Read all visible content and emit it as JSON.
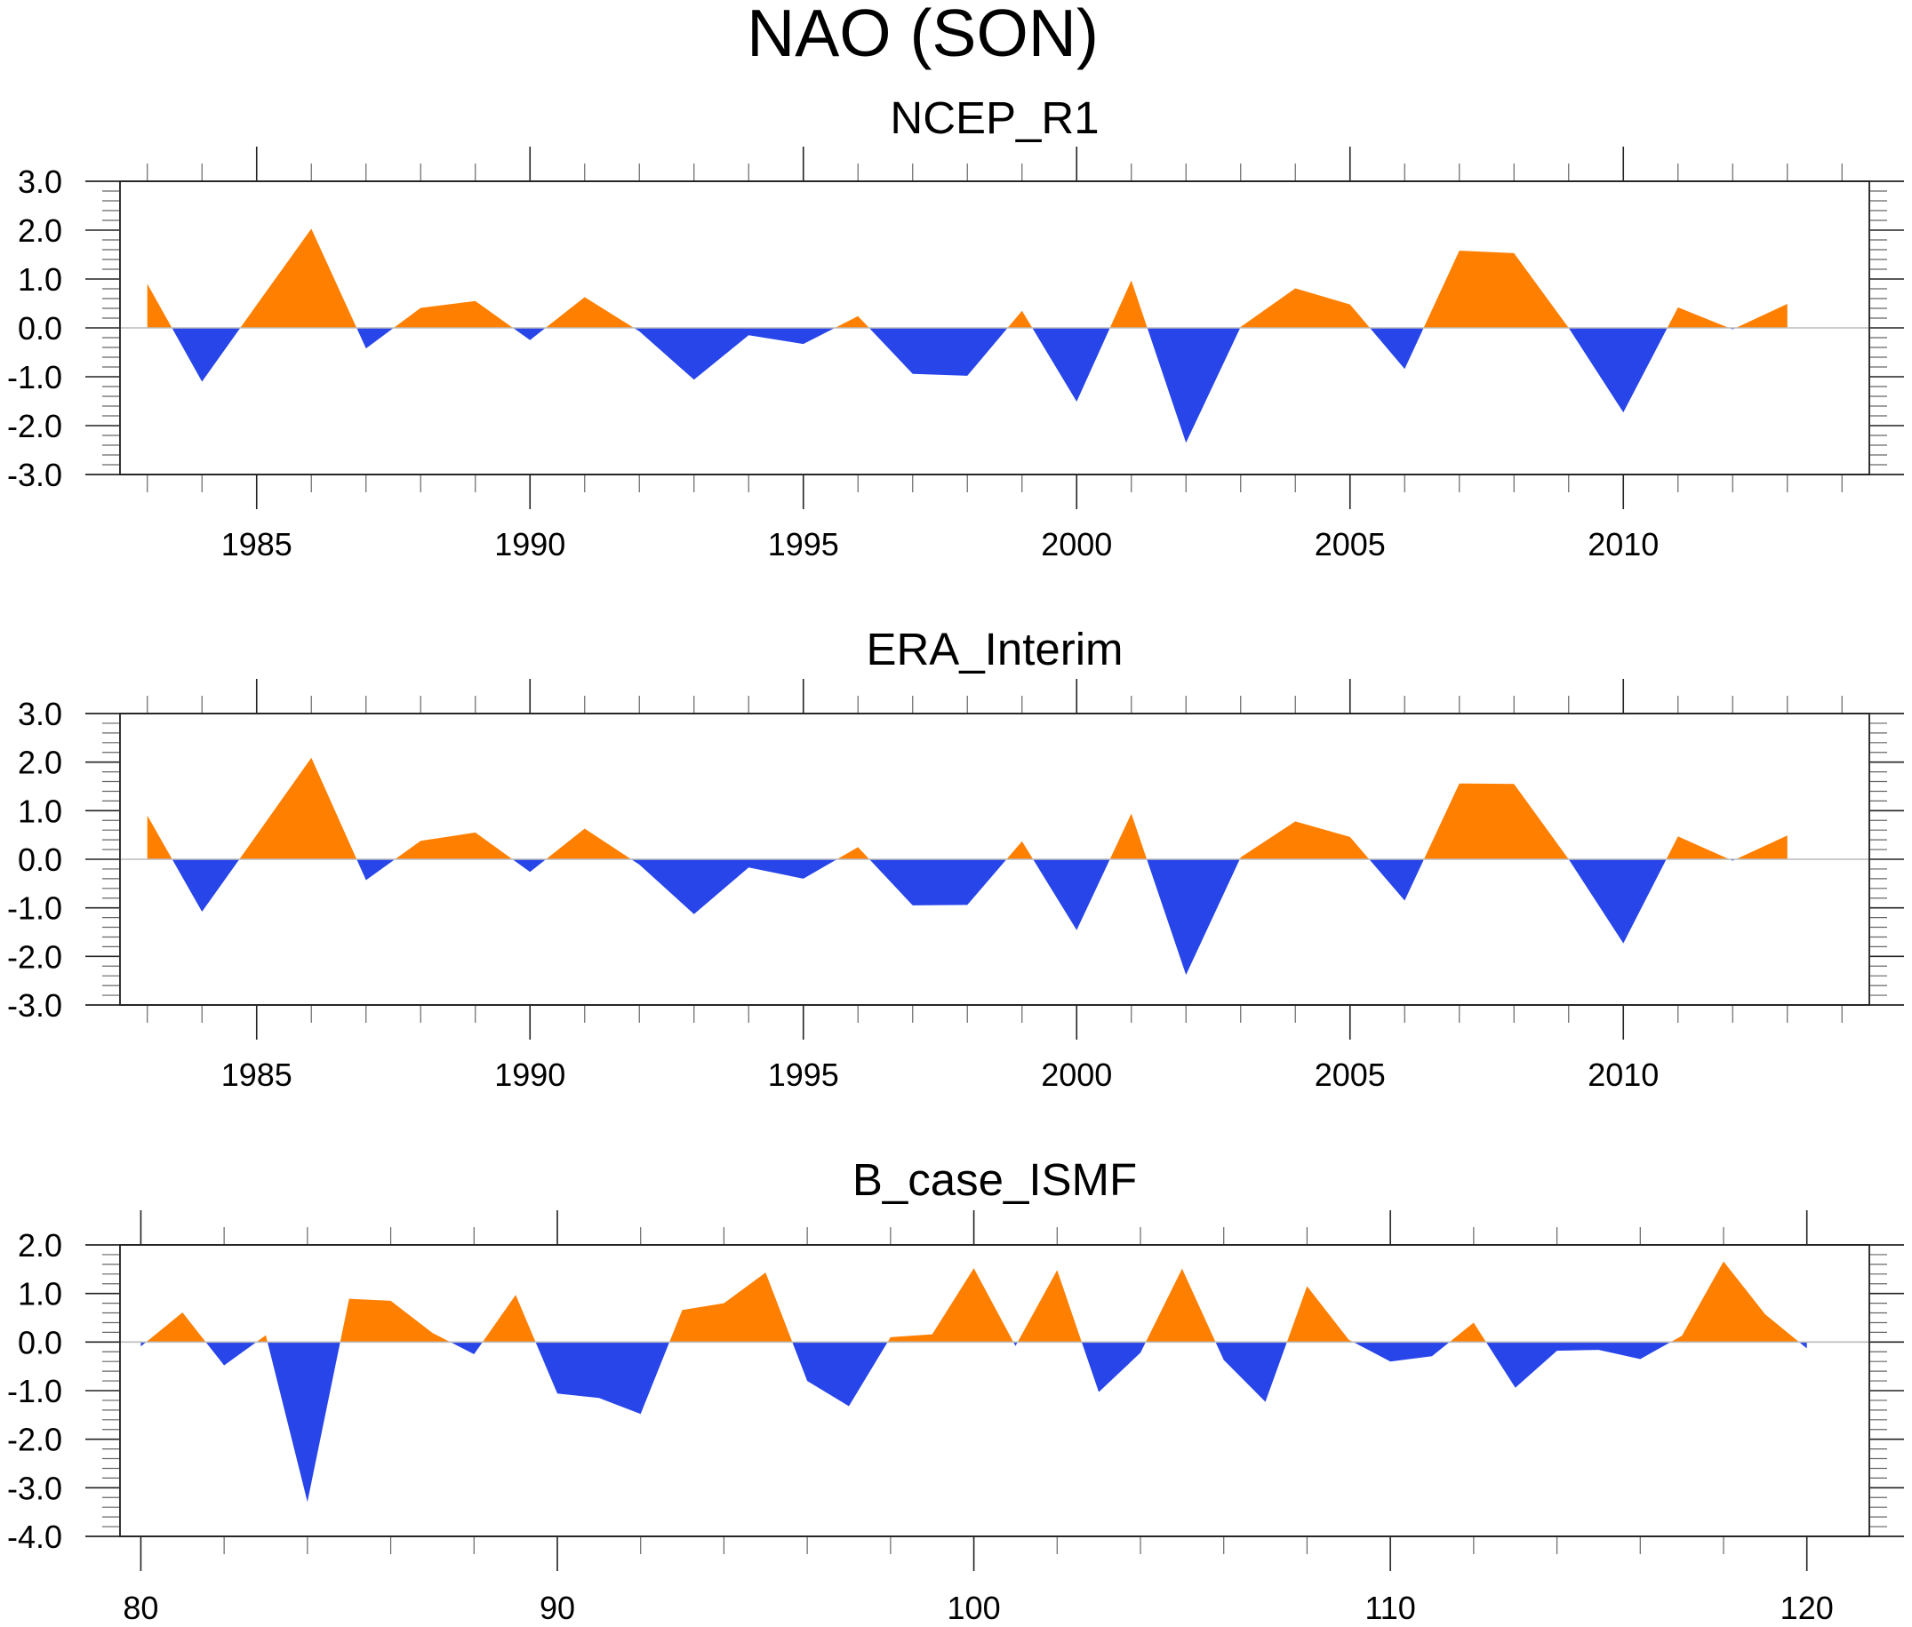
{
  "figure": {
    "title": "NAO (SON)"
  },
  "colors": {
    "positive": "#FF7F00",
    "negative": "#2845EA",
    "zero_line": "#BBBBBB",
    "axes": "#333333"
  },
  "chart_data": [
    {
      "type": "area",
      "title": "NCEP_R1",
      "xlabel": "",
      "ylabel": "",
      "fill_above_zero": "orange",
      "fill_below_zero": "blue",
      "xlim": [
        1982.5,
        2014.5
      ],
      "ylim": [
        -3.0,
        3.0
      ],
      "x_major_ticks": [
        1985,
        1990,
        1995,
        2000,
        2005,
        2010
      ],
      "x_tick_labels": [
        "1985",
        "1990",
        "1995",
        "2000",
        "2005",
        "2010"
      ],
      "x_minor_step": 1,
      "y_major_ticks": [
        3.0,
        2.0,
        1.0,
        0.0,
        -1.0,
        -2.0,
        -3.0
      ],
      "y_tick_labels": [
        "3.0",
        "2.0",
        "1.0",
        "0.0",
        "-1.0",
        "-2.0",
        "-3.0"
      ],
      "y_minor_step": 0.2,
      "x": [
        1983,
        1984,
        1985,
        1986,
        1987,
        1988,
        1989,
        1990,
        1991,
        1992,
        1993,
        1994,
        1995,
        1996,
        1997,
        1998,
        1999,
        2000,
        2001,
        2002,
        2003,
        2004,
        2005,
        2006,
        2007,
        2008,
        2009,
        2010,
        2011,
        2012,
        2013
      ],
      "values": [
        0.9,
        -1.1,
        0.47,
        2.03,
        -0.42,
        0.41,
        0.55,
        -0.25,
        0.63,
        -0.07,
        -1.06,
        -0.15,
        -0.33,
        0.24,
        -0.94,
        -0.98,
        0.35,
        -1.51,
        0.97,
        -2.35,
        0.02,
        0.81,
        0.48,
        -0.84,
        1.58,
        1.53,
        0.0,
        -1.73,
        0.42,
        -0.03,
        0.49
      ]
    },
    {
      "type": "area",
      "title": "ERA_Interim",
      "xlabel": "",
      "ylabel": "",
      "fill_above_zero": "orange",
      "fill_below_zero": "blue",
      "xlim": [
        1982.5,
        2014.5
      ],
      "ylim": [
        -3.0,
        3.0
      ],
      "x_major_ticks": [
        1985,
        1990,
        1995,
        2000,
        2005,
        2010
      ],
      "x_tick_labels": [
        "1985",
        "1990",
        "1995",
        "2000",
        "2005",
        "2010"
      ],
      "x_minor_step": 1,
      "y_major_ticks": [
        3.0,
        2.0,
        1.0,
        0.0,
        -1.0,
        -2.0,
        -3.0
      ],
      "y_tick_labels": [
        "3.0",
        "2.0",
        "1.0",
        "0.0",
        "-1.0",
        "-2.0",
        "-3.0"
      ],
      "y_minor_step": 0.2,
      "x": [
        1983,
        1984,
        1985,
        1986,
        1987,
        1988,
        1989,
        1990,
        1991,
        1992,
        1993,
        1994,
        1995,
        1996,
        1997,
        1998,
        1999,
        2000,
        2001,
        2002,
        2003,
        2004,
        2005,
        2006,
        2007,
        2008,
        2009,
        2010,
        2011,
        2012,
        2013
      ],
      "values": [
        0.9,
        -1.08,
        0.5,
        2.09,
        -0.43,
        0.38,
        0.55,
        -0.26,
        0.63,
        -0.11,
        -1.13,
        -0.17,
        -0.4,
        0.25,
        -0.95,
        -0.94,
        0.37,
        -1.46,
        0.94,
        -2.38,
        0.04,
        0.78,
        0.46,
        -0.85,
        1.56,
        1.55,
        0.0,
        -1.73,
        0.47,
        -0.03,
        0.49
      ]
    },
    {
      "type": "area",
      "title": "B_case_ISMF",
      "xlabel": "",
      "ylabel": "",
      "fill_above_zero": "orange",
      "fill_below_zero": "blue",
      "xlim": [
        79.5,
        121.5
      ],
      "ylim": [
        -4.0,
        2.0
      ],
      "x_major_ticks": [
        80,
        90,
        100,
        110,
        120
      ],
      "x_tick_labels": [
        "80",
        "90",
        "100",
        "110",
        "120"
      ],
      "x_minor_step": 2,
      "y_major_ticks": [
        2.0,
        1.0,
        0.0,
        -1.0,
        -2.0,
        -3.0,
        -4.0
      ],
      "y_tick_labels": [
        "2.0",
        "1.0",
        "0.0",
        "-1.0",
        "-2.0",
        "-3.0",
        "-4.0"
      ],
      "y_minor_step": 0.2,
      "x": [
        80,
        81,
        82,
        83,
        84,
        85,
        86,
        87,
        88,
        89,
        90,
        91,
        92,
        93,
        94,
        95,
        96,
        97,
        98,
        99,
        100,
        101,
        102,
        103,
        104,
        105,
        106,
        107,
        108,
        109,
        110,
        111,
        112,
        113,
        114,
        115,
        116,
        117,
        118,
        119,
        120
      ],
      "values": [
        -0.09,
        0.61,
        -0.48,
        0.14,
        -3.29,
        0.89,
        0.85,
        0.19,
        -0.25,
        0.97,
        -1.06,
        -1.15,
        -1.48,
        0.66,
        0.8,
        1.43,
        -0.8,
        -1.32,
        0.1,
        0.16,
        1.52,
        -0.08,
        1.48,
        -1.03,
        -0.22,
        1.51,
        -0.37,
        -1.23,
        1.15,
        0.05,
        -0.4,
        -0.29,
        0.4,
        -0.94,
        -0.18,
        -0.16,
        -0.35,
        0.13,
        1.66,
        0.57,
        -0.13
      ]
    }
  ]
}
